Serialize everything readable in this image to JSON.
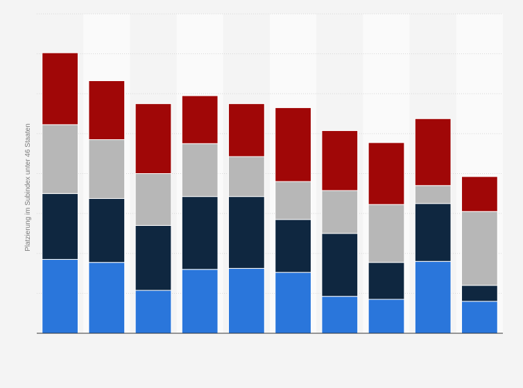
{
  "chart_data": {
    "type": "bar",
    "stacked": true,
    "title": "",
    "xlabel": "",
    "ylabel": "Platzierung im Subindex unter 46 Staaten",
    "ylim": [
      0,
      160
    ],
    "grid": true,
    "legend": "none",
    "categories": [
      "",
      "",
      "",
      "",
      "",
      "",
      "",
      "",
      "",
      ""
    ],
    "series": [
      {
        "color": "#2a76db",
        "values": [
          37,
          35.5,
          21.5,
          32,
          32.5,
          30.5,
          18.5,
          17,
          36,
          16
        ]
      },
      {
        "color": "#0f2740",
        "values": [
          33,
          32,
          32.5,
          36.5,
          36,
          26.5,
          31.5,
          18.5,
          29,
          8
        ]
      },
      {
        "color": "#b7b7b7",
        "values": [
          34.5,
          29.5,
          26,
          26.5,
          20,
          19,
          21.5,
          29,
          9,
          37
        ]
      },
      {
        "color": "#a00707",
        "values": [
          36,
          29.5,
          35,
          24,
          26.5,
          37,
          30,
          31,
          33.5,
          17.5
        ]
      }
    ]
  }
}
